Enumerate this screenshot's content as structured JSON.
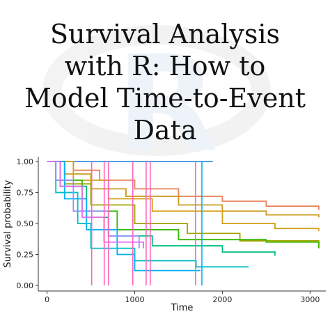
{
  "chart_data": {
    "type": "step",
    "title": [
      "Survival Analysis",
      "with R: How to",
      "Model Time-to-Event",
      "Data"
    ],
    "x_label": "Time",
    "y_label": "Survival probability",
    "xlim": [
      -100,
      3180
    ],
    "ylim": [
      -0.045,
      1.04
    ],
    "xticks": [
      0,
      1000,
      2000,
      3000
    ],
    "yticks": [
      {
        "value": 0,
        "label": "0.00"
      },
      0.25,
      {
        "value": 0.5,
        "label": "0.50"
      },
      0.75,
      {
        "value": 1,
        "label": "1.00"
      }
    ],
    "series": [
      {
        "color": "#3a8fd8",
        "x": [
          0,
          1890
        ],
        "values": [
          1,
          1
        ]
      },
      {
        "color": "#e8825a",
        "x": [
          0,
          300,
          600,
          1000,
          1500,
          2000,
          2500,
          3100
        ],
        "values": [
          1,
          0.93,
          0.85,
          0.78,
          0.72,
          0.68,
          0.64,
          0.61
        ]
      },
      {
        "color": "#c99a1e",
        "x": [
          0,
          200,
          500,
          900,
          1500,
          2000,
          2500,
          3100
        ],
        "values": [
          1,
          0.9,
          0.78,
          0.72,
          0.65,
          0.6,
          0.57,
          0.55
        ]
      },
      {
        "color": "#d4a017",
        "x": [
          0,
          300,
          700,
          1200,
          2000,
          2600,
          3100
        ],
        "values": [
          1,
          0.85,
          0.7,
          0.6,
          0.5,
          0.46,
          0.44
        ]
      },
      {
        "color": "#a3a500",
        "x": [
          0,
          200,
          500,
          1000,
          1600,
          2200,
          3100
        ],
        "values": [
          1,
          0.82,
          0.65,
          0.5,
          0.42,
          0.36,
          0.33
        ]
      },
      {
        "color": "#39b600",
        "x": [
          0,
          100,
          400,
          800,
          1500,
          2500,
          3100
        ],
        "values": [
          1,
          0.85,
          0.6,
          0.45,
          0.37,
          0.35,
          0.3
        ]
      },
      {
        "color": "#00bf7d",
        "x": [
          0,
          150,
          450,
          700,
          1200,
          2000,
          2600
        ],
        "values": [
          1,
          0.8,
          0.55,
          0.4,
          0.32,
          0.27,
          0.24
        ]
      },
      {
        "color": "#00bfc4",
        "x": [
          0,
          100,
          350,
          500,
          1000,
          1700,
          2300
        ],
        "values": [
          1,
          0.75,
          0.5,
          0.3,
          0.2,
          0.15,
          0.15
        ]
      },
      {
        "color": "#00b0f6",
        "x": [
          0,
          200,
          450,
          800,
          1000,
          1750
        ],
        "values": [
          1,
          0.7,
          0.45,
          0.25,
          0.12,
          0.12
        ]
      },
      {
        "color": "#9590ff",
        "x": [
          0,
          100,
          300,
          700,
          1050
        ],
        "values": [
          1,
          0.85,
          0.6,
          0.4,
          0.3
        ]
      },
      {
        "color": "#e76bf3",
        "x": [
          0,
          150,
          400,
          650,
          1100
        ],
        "values": [
          1,
          0.8,
          0.55,
          0.35,
          0.3
        ]
      }
    ],
    "median_lines": [
      {
        "x": 509,
        "color": "#ff62bc"
      },
      {
        "x": 652,
        "color": "#ff62bc"
      },
      {
        "x": 700,
        "color": "#ff62bc"
      },
      {
        "x": 978,
        "color": "#ff62bc"
      },
      {
        "x": 1130,
        "color": "#ff62bc"
      },
      {
        "x": 1177,
        "color": "#ff62bc"
      },
      {
        "x": 1694,
        "color": "#ff62bc"
      },
      {
        "x": 1766,
        "color": "#00b0f6"
      }
    ]
  }
}
